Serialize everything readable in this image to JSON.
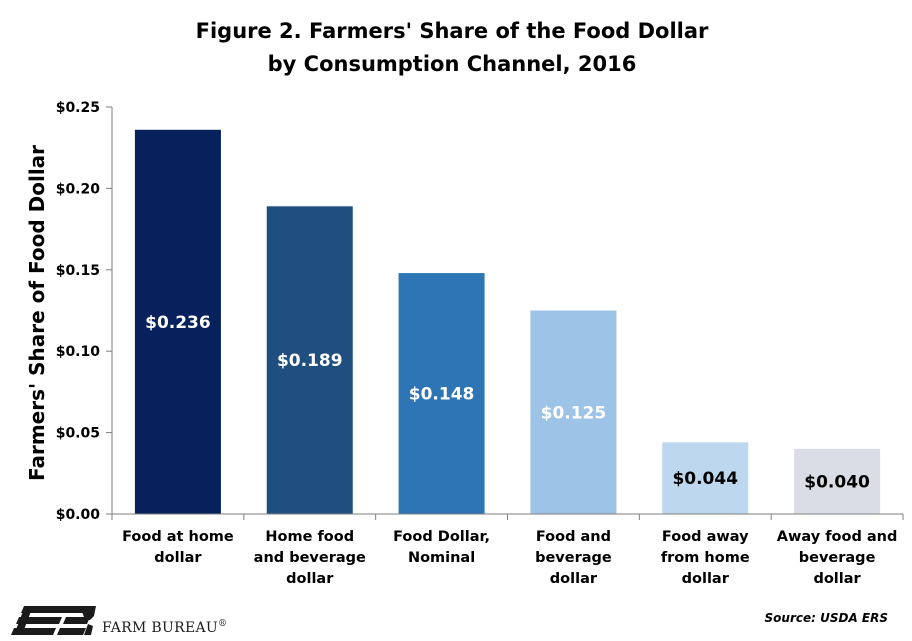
{
  "title_lines": [
    "Figure 2. Farmers' Share of the Food Dollar",
    "by Consumption Channel, 2016"
  ],
  "source": "Source: USDA ERS",
  "brand": {
    "name": "FARM BUREAU",
    "mark": "®"
  },
  "chart_data": {
    "type": "bar",
    "title": "Figure 2. Farmers' Share of the Food Dollar by Consumption Channel, 2016",
    "ylabel": "Farmers' Share of Food Dollar",
    "xlabel": "",
    "ylim": [
      0,
      0.25
    ],
    "yticks": [
      0,
      0.05,
      0.1,
      0.15,
      0.2,
      0.25
    ],
    "ytick_labels": [
      "$0.00",
      "$0.05",
      "$0.10",
      "$0.15",
      "$0.20",
      "$0.25"
    ],
    "grid": false,
    "legend": "none",
    "categories": [
      [
        "Food at home",
        "dollar"
      ],
      [
        "Home food",
        "and beverage",
        "dollar"
      ],
      [
        "Food Dollar,",
        "Nominal"
      ],
      [
        "Food and",
        "beverage",
        "dollar"
      ],
      [
        "Food away",
        "from home",
        "dollar"
      ],
      [
        "Away food and",
        "beverage",
        "dollar"
      ]
    ],
    "values": [
      0.236,
      0.189,
      0.148,
      0.125,
      0.044,
      0.04
    ],
    "data_labels": [
      "$0.236",
      "$0.189",
      "$0.148",
      "$0.125",
      "$0.044",
      "$0.040"
    ],
    "bar_colors": [
      "#07215c",
      "#1f4f7e",
      "#2e75b6",
      "#9dc3e6",
      "#bdd7ee",
      "#d9dee6"
    ],
    "label_colors": [
      "#ffffff",
      "#ffffff",
      "#ffffff",
      "#ffffff",
      "#000000",
      "#000000"
    ]
  }
}
